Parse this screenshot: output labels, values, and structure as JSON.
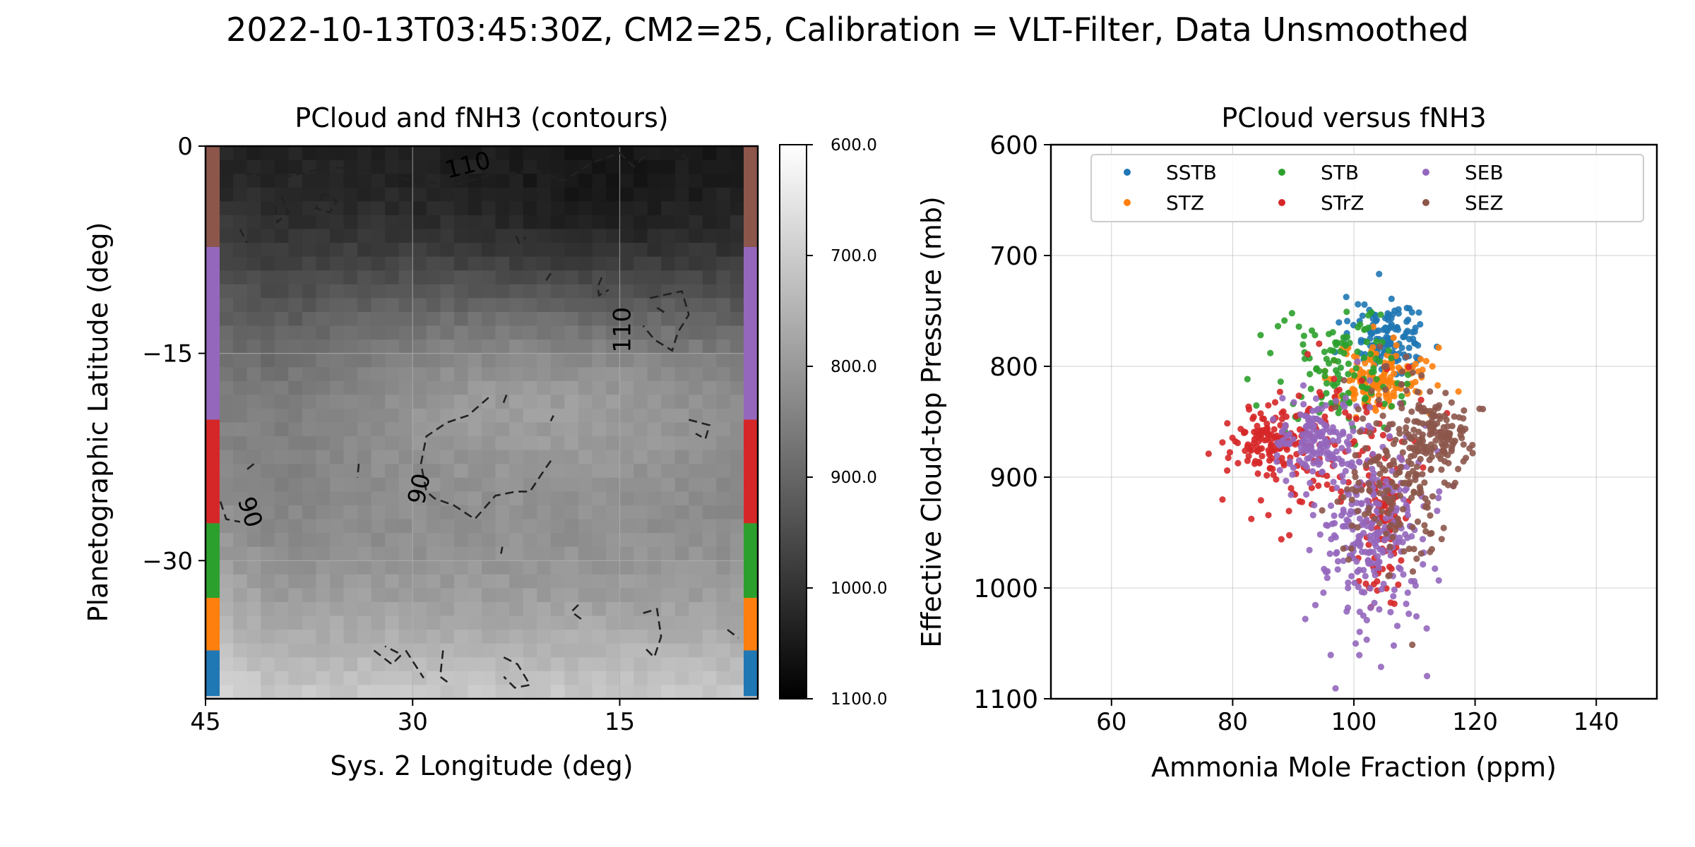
{
  "figure": {
    "suptitle": "2022-10-13T03:45:30Z, CM2=25, Calibration = VLT-Filter, Data Unsmoothed"
  },
  "chart_data": [
    {
      "type": "heatmap",
      "title": "PCloud and fNH3 (contours)",
      "xlabel": "Sys. 2 Longitude (deg)",
      "ylabel": "Planetographic Latitude (deg)",
      "xlim": [
        45,
        5
      ],
      "ylim": [
        -40,
        0
      ],
      "xticks": [
        45,
        30,
        15
      ],
      "xtick_labels": [
        "45",
        "30",
        "15"
      ],
      "yticks": [
        0,
        -15,
        -30
      ],
      "ytick_labels": [
        "0",
        "−15",
        "−30"
      ],
      "grid": true,
      "colormap": "gray",
      "color_range": [
        600,
        1100
      ],
      "colorbar_ticks": [
        600,
        700,
        800,
        900,
        1000,
        1100
      ],
      "colorbar_labels": [
        "600.0",
        "700.0",
        "800.0",
        "900.0",
        "1000.0",
        "1100.0"
      ],
      "contour_labels": [
        {
          "text": "110",
          "lon": 26,
          "lat": -1.4,
          "angle": -14
        },
        {
          "text": "110",
          "lon": 14.8,
          "lat": -13.3,
          "angle": -90
        },
        {
          "text": "90",
          "lon": 29.5,
          "lat": -24.8,
          "angle": -78
        },
        {
          "text": "90",
          "lon": 41.8,
          "lat": -26.5,
          "angle": 72
        }
      ],
      "band_strips": [
        {
          "band": "SEZ",
          "lat_top": 0,
          "lat_bottom": -7.3,
          "color": "#8c564b"
        },
        {
          "band": "SEB",
          "lat_top": -7.3,
          "lat_bottom": -19.8,
          "color": "#9467bd"
        },
        {
          "band": "STrZ",
          "lat_top": -19.8,
          "lat_bottom": -27.3,
          "color": "#d62728"
        },
        {
          "band": "STB",
          "lat_top": -27.3,
          "lat_bottom": -32.7,
          "color": "#2ca02c"
        },
        {
          "band": "STZ",
          "lat_top": -32.7,
          "lat_bottom": -36.5,
          "color": "#ff7f0e"
        },
        {
          "band": "SSTB",
          "lat_top": -36.5,
          "lat_bottom": -39.8,
          "color": "#1f77b4"
        }
      ]
    },
    {
      "type": "scatter",
      "title": "PCloud versus fNH3",
      "xlabel": "Ammonia Mole Fraction (ppm)",
      "ylabel": "Effective Cloud-top Pressure (mb)",
      "xlim": [
        50,
        150
      ],
      "ylim": [
        1100,
        600
      ],
      "xticks": [
        60,
        80,
        100,
        120,
        140
      ],
      "yticks": [
        600,
        700,
        800,
        900,
        1000,
        1100
      ],
      "grid": true,
      "legend_position": "top",
      "series": [
        {
          "name": "SSTB",
          "color": "#1f77b4",
          "x_center": 106,
          "x_spread": 3.2,
          "y_center": 773,
          "y_spread": 14,
          "count": 130
        },
        {
          "name": "STZ",
          "color": "#ff7f0e",
          "x_center": 104,
          "x_spread": 4.2,
          "y_center": 810,
          "y_spread": 16,
          "count": 150
        },
        {
          "name": "STB",
          "color": "#2ca02c",
          "x_center": 97,
          "x_spread": 5,
          "y_center": 805,
          "y_spread": 28,
          "count": 120
        },
        {
          "name": "STrZ",
          "color": "#d62728",
          "x_center": 95,
          "x_spread": 7.5,
          "y_center": 870,
          "y_spread": 38,
          "count": 320
        },
        {
          "name": "SEB",
          "color": "#9467bd",
          "x_center": 103,
          "x_spread": 4.5,
          "y_center": 940,
          "y_spread": 48,
          "count": 420
        },
        {
          "name": "SEZ",
          "color": "#8c564b",
          "x_center": 108,
          "x_spread": 4.5,
          "y_center": 890,
          "y_spread": 45,
          "count": 300
        }
      ]
    }
  ]
}
